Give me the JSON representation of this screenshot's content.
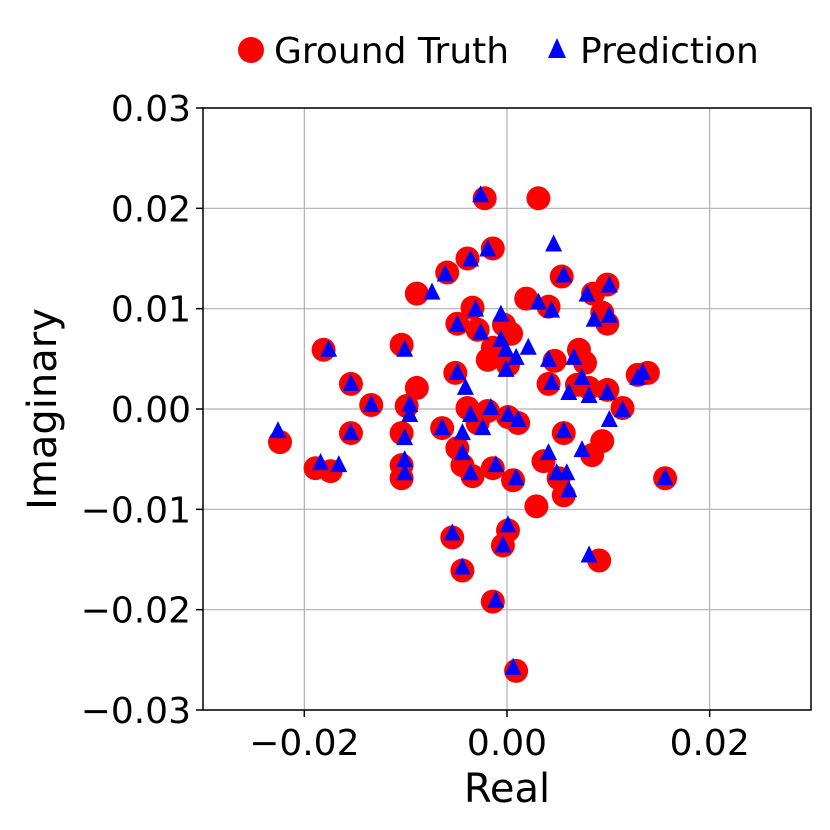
{
  "chart_data": {
    "type": "scatter",
    "xlabel": "Real",
    "ylabel": "Imaginary",
    "xlim": [
      -0.03,
      0.03
    ],
    "ylim": [
      -0.03,
      0.03
    ],
    "xticks": [
      -0.02,
      0.0,
      0.02
    ],
    "xtick_labels": [
      "−0.02",
      "0.00",
      "0.02"
    ],
    "yticks": [
      -0.03,
      -0.02,
      -0.01,
      0.0,
      0.01,
      0.02,
      0.03
    ],
    "ytick_labels": [
      "−0.03",
      "−0.02",
      "−0.01",
      "0.00",
      "0.01",
      "0.02",
      "0.03"
    ],
    "grid": true,
    "legend_position": "top-center",
    "series": [
      {
        "name": "Ground Truth",
        "marker": "circle",
        "color": "#ff0000",
        "points": [
          [
            -0.0022,
            0.021
          ],
          [
            0.0031,
            0.021
          ],
          [
            -0.0014,
            0.016
          ],
          [
            -0.0039,
            0.015
          ],
          [
            -0.0059,
            0.0136
          ],
          [
            -0.0089,
            0.0115
          ],
          [
            0.0054,
            0.0132
          ],
          [
            0.0099,
            0.0124
          ],
          [
            0.0085,
            0.0115
          ],
          [
            0.0019,
            0.011
          ],
          [
            0.0041,
            0.0102
          ],
          [
            -0.0034,
            0.0101
          ],
          [
            -0.0049,
            0.0085
          ],
          [
            -0.0029,
            0.0079
          ],
          [
            -0.0003,
            0.0084
          ],
          [
            0.0004,
            0.0075
          ],
          [
            0.0094,
            0.0096
          ],
          [
            0.0099,
            0.0085
          ],
          [
            -0.0181,
            0.0059
          ],
          [
            -0.0104,
            0.0064
          ],
          [
            -0.0014,
            0.0061
          ],
          [
            -0.0019,
            0.0049
          ],
          [
            0.0071,
            0.0059
          ],
          [
            0.0047,
            0.0048
          ],
          [
            0.0077,
            0.0046
          ],
          [
            -0.0051,
            0.0036
          ],
          [
            0.0001,
            0.0044
          ],
          [
            0.0129,
            0.0034
          ],
          [
            0.0139,
            0.0036
          ],
          [
            -0.0154,
            0.0025
          ],
          [
            -0.0089,
            0.0021
          ],
          [
            0.0041,
            0.0025
          ],
          [
            0.0069,
            0.0024
          ],
          [
            0.0081,
            0.0021
          ],
          [
            0.0099,
            0.0019
          ],
          [
            -0.0134,
            0.0004
          ],
          [
            -0.0099,
            0.0003
          ],
          [
            -0.0039,
            0.0001
          ],
          [
            -0.0019,
            -0.0002
          ],
          [
            0.0001,
            -0.0008
          ],
          [
            0.0114,
            0.0001
          ],
          [
            -0.0224,
            -0.0033
          ],
          [
            -0.0154,
            -0.0024
          ],
          [
            -0.0104,
            -0.0024
          ],
          [
            -0.0064,
            -0.0019
          ],
          [
            -0.0049,
            -0.0039
          ],
          [
            -0.0029,
            -0.0014
          ],
          [
            0.0011,
            -0.0014
          ],
          [
            0.0056,
            -0.0024
          ],
          [
            0.0094,
            -0.0032
          ],
          [
            0.0084,
            -0.0046
          ],
          [
            -0.0189,
            -0.0059
          ],
          [
            -0.0174,
            -0.0062
          ],
          [
            -0.0104,
            -0.0056
          ],
          [
            -0.0104,
            -0.0069
          ],
          [
            -0.0044,
            -0.0056
          ],
          [
            -0.0034,
            -0.0067
          ],
          [
            -0.0014,
            -0.0059
          ],
          [
            0.0006,
            -0.0071
          ],
          [
            0.0036,
            -0.0052
          ],
          [
            0.0051,
            -0.0069
          ],
          [
            0.0056,
            -0.0086
          ],
          [
            0.0156,
            -0.0069
          ],
          [
            0.0029,
            -0.0097
          ],
          [
            -0.0054,
            -0.0128
          ],
          [
            0.0001,
            -0.0121
          ],
          [
            -0.0004,
            -0.0136
          ],
          [
            -0.0044,
            -0.0161
          ],
          [
            0.0091,
            -0.0151
          ],
          [
            -0.0014,
            -0.0192
          ],
          [
            0.0009,
            -0.0261
          ]
        ]
      },
      {
        "name": "Prediction",
        "marker": "triangle",
        "color": "#0000ff",
        "points": [
          [
            -0.0026,
            0.0213
          ],
          [
            -0.0019,
            0.0159
          ],
          [
            -0.0036,
            0.0149
          ],
          [
            -0.0061,
            0.0134
          ],
          [
            -0.0074,
            0.0116
          ],
          [
            0.0046,
            0.0164
          ],
          [
            0.0056,
            0.0133
          ],
          [
            0.0101,
            0.0123
          ],
          [
            0.0079,
            0.0114
          ],
          [
            0.0031,
            0.0106
          ],
          [
            0.0044,
            0.0098
          ],
          [
            -0.0031,
            0.0099
          ],
          [
            -0.0049,
            0.0084
          ],
          [
            -0.0026,
            0.0076
          ],
          [
            -0.0006,
            0.0094
          ],
          [
            -0.0006,
            0.0069
          ],
          [
            0.0101,
            0.0093
          ],
          [
            0.0086,
            0.0089
          ],
          [
            -0.0176,
            0.0059
          ],
          [
            -0.0101,
            0.0059
          ],
          [
            -0.0001,
            0.0059
          ],
          [
            0.0009,
            0.0051
          ],
          [
            0.0021,
            0.0061
          ],
          [
            0.0066,
            0.0051
          ],
          [
            0.0041,
            0.0049
          ],
          [
            0.0074,
            0.0031
          ],
          [
            -0.0049,
            0.0036
          ],
          [
            -0.0001,
            0.0039
          ],
          [
            0.0134,
            0.0036
          ],
          [
            0.0129,
            0.0031
          ],
          [
            -0.0154,
            0.0025
          ],
          [
            -0.0041,
            0.0021
          ],
          [
            0.0044,
            0.0026
          ],
          [
            0.0061,
            0.0016
          ],
          [
            0.0081,
            0.0013
          ],
          [
            0.0099,
            0.0016
          ],
          [
            -0.0134,
            0.0004
          ],
          [
            -0.0096,
            0.0004
          ],
          [
            -0.0096,
            -0.0006
          ],
          [
            -0.0036,
            -0.0006
          ],
          [
            -0.0016,
            0.0001
          ],
          [
            0.0001,
            -0.0006
          ],
          [
            0.0114,
            -0.0001
          ],
          [
            -0.0226,
            -0.0022
          ],
          [
            -0.0154,
            -0.0024
          ],
          [
            -0.0101,
            -0.0029
          ],
          [
            -0.0064,
            -0.0019
          ],
          [
            -0.0044,
            -0.0024
          ],
          [
            -0.0024,
            -0.0019
          ],
          [
            0.0011,
            -0.0011
          ],
          [
            0.0056,
            -0.0022
          ],
          [
            0.0101,
            -0.0011
          ],
          [
            0.0074,
            -0.0041
          ],
          [
            -0.0184,
            -0.0054
          ],
          [
            -0.0166,
            -0.0056
          ],
          [
            -0.0101,
            -0.0051
          ],
          [
            -0.0101,
            -0.0064
          ],
          [
            -0.0044,
            -0.0044
          ],
          [
            -0.0036,
            -0.0064
          ],
          [
            -0.0011,
            -0.0056
          ],
          [
            0.0009,
            -0.0069
          ],
          [
            0.0041,
            -0.0044
          ],
          [
            0.0049,
            -0.0064
          ],
          [
            0.0059,
            -0.0064
          ],
          [
            0.0061,
            -0.0081
          ],
          [
            0.0156,
            -0.0069
          ],
          [
            -0.0054,
            -0.0124
          ],
          [
            0.0001,
            -0.0116
          ],
          [
            -0.0004,
            -0.0136
          ],
          [
            -0.0044,
            -0.0158
          ],
          [
            0.0081,
            -0.0146
          ],
          [
            -0.0011,
            -0.0191
          ],
          [
            0.0006,
            -0.0258
          ]
        ]
      }
    ]
  }
}
